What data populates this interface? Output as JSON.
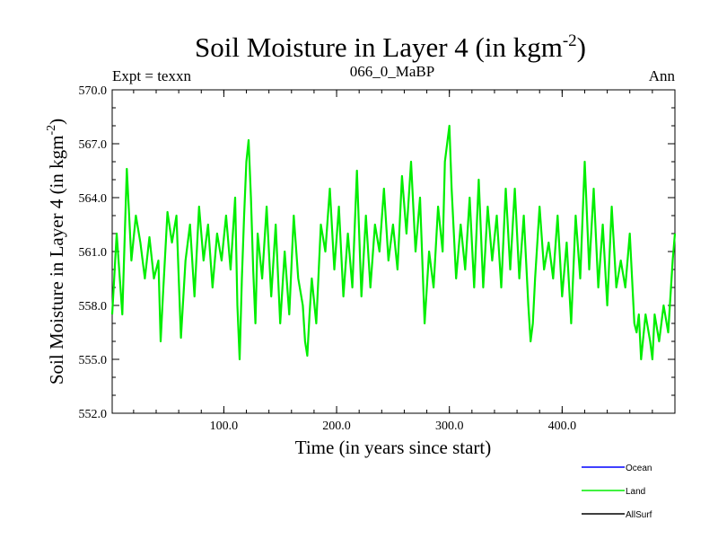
{
  "chart_data": {
    "type": "line",
    "title": "Soil Moisture in Layer 4 (in kgm",
    "title_superscript": "-2",
    "title_close": ")",
    "left_label": "Expt = texxn",
    "center_label": "066_0_MaBP",
    "right_label": "Ann",
    "xlabel": "Time (in years since start)",
    "ylabel": "Soil Moisture in Layer 4 (in kgm",
    "ylabel_superscript": "-2",
    "ylabel_close": ")",
    "xlim": [
      1,
      500
    ],
    "ylim": [
      552.0,
      570.0
    ],
    "x_ticks": [
      {
        "value": 100,
        "label": "100.0"
      },
      {
        "value": 200,
        "label": "200.0"
      },
      {
        "value": 300,
        "label": "300.0"
      },
      {
        "value": 400,
        "label": "400.0"
      }
    ],
    "y_ticks": [
      {
        "value": 552.0,
        "label": "552.0"
      },
      {
        "value": 555.0,
        "label": "555.0"
      },
      {
        "value": 558.0,
        "label": "558.0"
      },
      {
        "value": 561.0,
        "label": "561.0"
      },
      {
        "value": 564.0,
        "label": "564.0"
      },
      {
        "value": 567.0,
        "label": "567.0"
      },
      {
        "value": 570.0,
        "label": "570.0"
      }
    ],
    "legend": [
      {
        "name": "Ocean",
        "color": "#0000ff"
      },
      {
        "name": "Land",
        "color": "#00ee00"
      },
      {
        "name": "AllSurf",
        "color": "#000000"
      }
    ],
    "series": [
      {
        "name": "Land",
        "color": "#00ee00",
        "x": [
          1,
          5,
          10,
          14,
          18,
          22,
          26,
          30,
          34,
          38,
          42,
          44,
          46,
          50,
          54,
          58,
          62,
          66,
          70,
          74,
          78,
          82,
          86,
          90,
          94,
          98,
          102,
          106,
          110,
          112,
          114,
          116,
          118,
          120,
          122,
          124,
          126,
          128,
          130,
          134,
          138,
          142,
          146,
          150,
          154,
          158,
          162,
          166,
          170,
          172,
          174,
          176,
          178,
          182,
          186,
          190,
          194,
          198,
          202,
          206,
          210,
          214,
          218,
          222,
          226,
          230,
          234,
          238,
          242,
          246,
          250,
          254,
          258,
          262,
          266,
          270,
          274,
          278,
          282,
          286,
          290,
          294,
          296,
          298,
          300,
          302,
          306,
          310,
          314,
          318,
          322,
          326,
          330,
          334,
          338,
          342,
          346,
          350,
          354,
          358,
          362,
          366,
          370,
          372,
          374,
          376,
          380,
          384,
          388,
          392,
          396,
          400,
          404,
          408,
          412,
          416,
          420,
          424,
          428,
          432,
          436,
          440,
          444,
          448,
          452,
          456,
          460,
          464,
          466,
          468,
          470,
          474,
          478,
          480,
          482,
          486,
          490,
          494,
          498,
          500
        ],
        "values": [
          557.5,
          562.0,
          557.5,
          565.6,
          560.5,
          563.0,
          561.5,
          559.5,
          561.8,
          559.5,
          560.5,
          556.0,
          558.5,
          563.2,
          561.5,
          563.0,
          556.2,
          560.5,
          562.5,
          558.5,
          563.5,
          560.5,
          562.5,
          559.0,
          562.0,
          560.5,
          563.0,
          560.0,
          564.0,
          558.0,
          555.0,
          559.5,
          563.0,
          566.0,
          567.2,
          564.0,
          560.0,
          557.0,
          562.0,
          559.5,
          563.5,
          558.5,
          562.5,
          557.0,
          561.0,
          557.5,
          563.0,
          559.5,
          558.0,
          556.0,
          555.2,
          557.5,
          559.5,
          557.0,
          562.5,
          561.0,
          564.5,
          560.0,
          563.5,
          558.5,
          562.0,
          559.0,
          565.5,
          558.5,
          563.0,
          559.0,
          562.5,
          561.0,
          564.5,
          560.5,
          562.5,
          560.0,
          565.2,
          562.0,
          566.0,
          561.0,
          564.0,
          557.0,
          561.0,
          559.0,
          563.5,
          561.0,
          566.0,
          567.0,
          568.0,
          564.5,
          559.5,
          562.5,
          560.0,
          564.0,
          559.0,
          565.0,
          559.0,
          563.5,
          560.5,
          563.0,
          559.0,
          564.5,
          560.0,
          564.5,
          559.5,
          563.0,
          558.0,
          556.0,
          557.0,
          559.5,
          563.5,
          560.0,
          561.5,
          559.5,
          563.0,
          558.5,
          561.5,
          557.0,
          563.0,
          559.5,
          566.0,
          560.0,
          564.5,
          559.0,
          562.5,
          558.0,
          563.5,
          559.0,
          560.5,
          559.0,
          562.0,
          557.0,
          556.5,
          557.5,
          555.0,
          557.5,
          556.0,
          555.0,
          557.5,
          556.0,
          558.0,
          556.5,
          560.5,
          562.0
        ]
      }
    ]
  }
}
